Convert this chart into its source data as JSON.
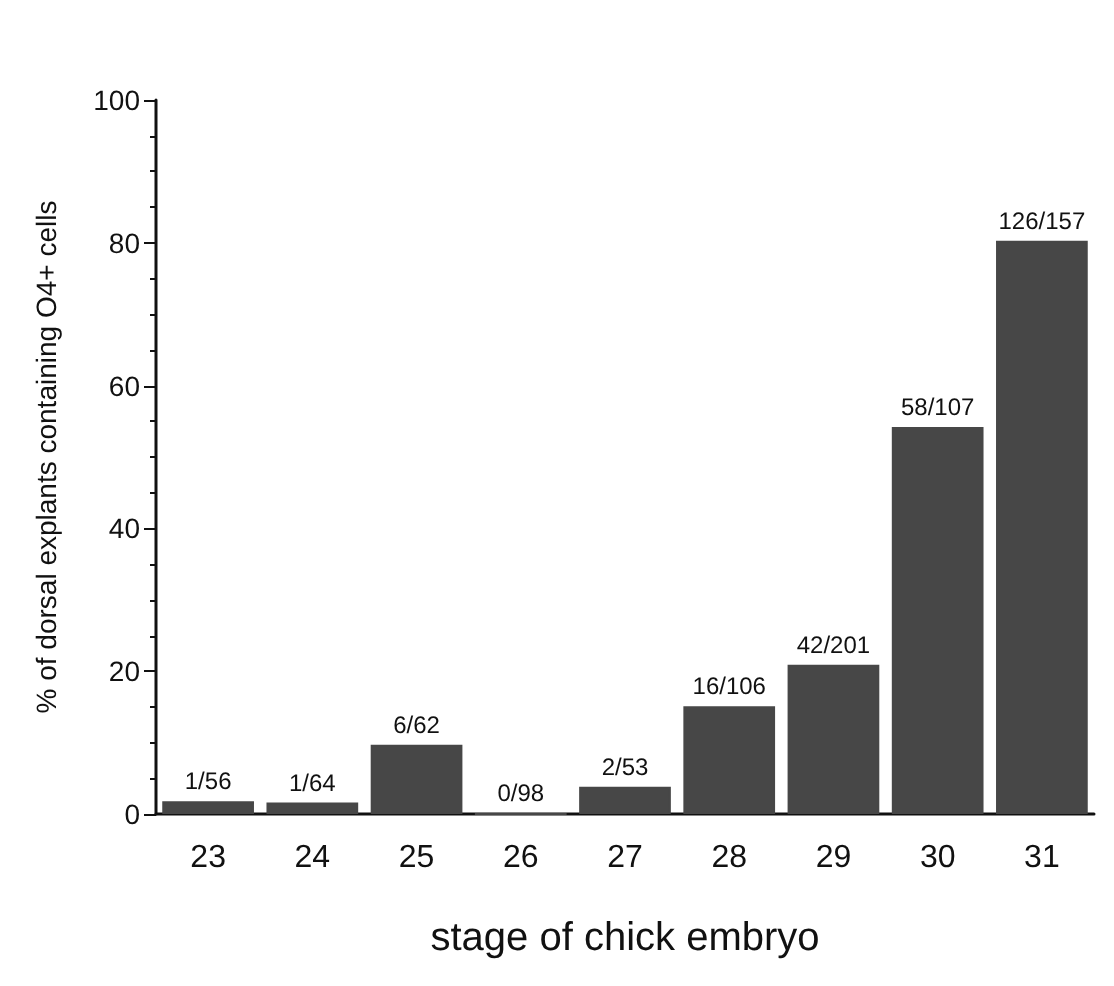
{
  "chart_data": {
    "type": "bar",
    "xlabel": "stage of chick embryo",
    "ylabel": "% of dorsal explants containing O4+ cells",
    "categories": [
      "23",
      "24",
      "25",
      "26",
      "27",
      "28",
      "29",
      "30",
      "31"
    ],
    "values": [
      1.8,
      1.6,
      9.7,
      0,
      3.8,
      15.1,
      20.9,
      54.2,
      80.3
    ],
    "value_labels": [
      "1/56",
      "1/64",
      "6/62",
      "0/98",
      "2/53",
      "16/106",
      "42/201",
      "58/107",
      "126/157"
    ],
    "color": "#474747",
    "ylim": [
      0,
      100
    ],
    "yticks": [
      0,
      20,
      40,
      60,
      80,
      100
    ],
    "grid": false
  }
}
